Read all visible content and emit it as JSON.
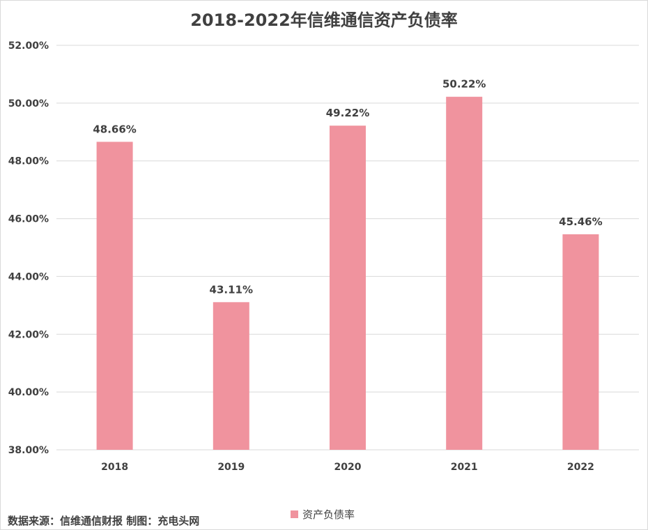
{
  "chart_data": {
    "type": "bar",
    "title": "2018-2022年信维通信资产负债率",
    "categories": [
      "2018",
      "2019",
      "2020",
      "2021",
      "2022"
    ],
    "series": [
      {
        "name": "资产负债率",
        "values": [
          48.66,
          43.11,
          49.22,
          50.22,
          45.46
        ],
        "data_labels": [
          "48.66%",
          "43.11%",
          "49.22%",
          "50.22%",
          "45.46%"
        ],
        "color": "#f0939e"
      }
    ],
    "ylim": [
      38,
      52
    ],
    "y_ticks": [
      38,
      40,
      42,
      44,
      46,
      48,
      50,
      52
    ],
    "y_tick_labels": [
      "38.00%",
      "40.00%",
      "42.00%",
      "44.00%",
      "46.00%",
      "48.00%",
      "50.00%",
      "52.00%"
    ],
    "grid": true,
    "legend_position": "bottom"
  },
  "source_note": "数据来源：信维通信财报  制图：充电头网"
}
